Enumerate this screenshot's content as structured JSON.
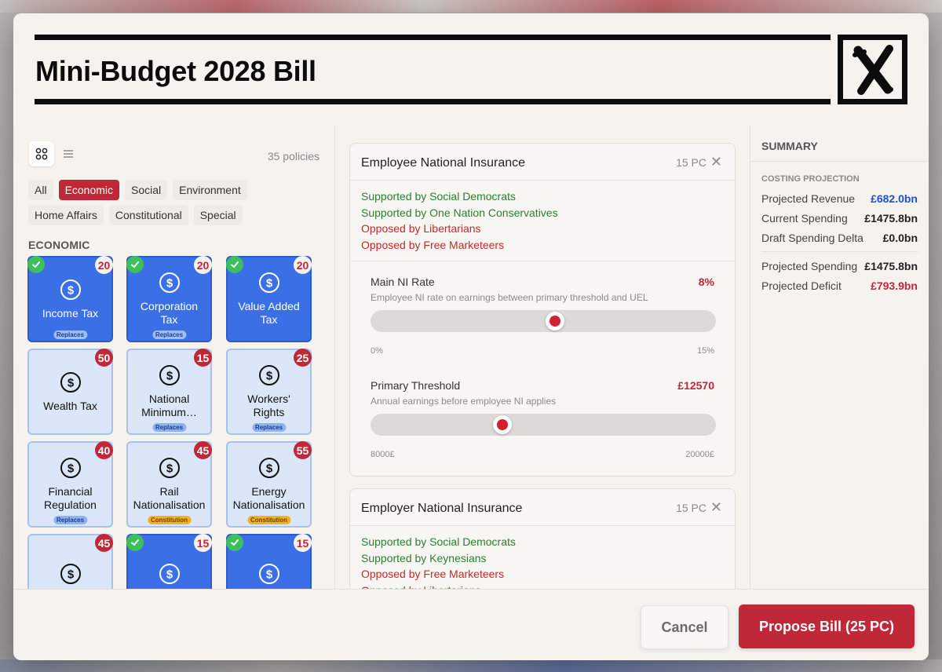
{
  "modal": {
    "title": "Mini-Budget 2028 Bill",
    "close_icon": "hand-drawn-x-icon"
  },
  "library": {
    "policy_count": "35 policies",
    "view_modes": [
      "grid-view-icon",
      "list-view-icon"
    ],
    "active_view": "grid",
    "filters": [
      "All",
      "Economic",
      "Social",
      "Environment",
      "Home Affairs",
      "Constitutional",
      "Special"
    ],
    "active_filter": "Economic",
    "section_label": "ECONOMIC",
    "cards": [
      {
        "label": "Income Tax",
        "cost": "20",
        "selected": true,
        "tag": "Replaces",
        "tag_type": "replaces"
      },
      {
        "label": "Corporation Tax",
        "cost": "20",
        "selected": true,
        "tag": "Replaces",
        "tag_type": "replaces"
      },
      {
        "label": "Value Added Tax",
        "cost": "20",
        "selected": true,
        "tag": "",
        "tag_type": ""
      },
      {
        "label": "Wealth Tax",
        "cost": "50",
        "selected": false,
        "tag": "",
        "tag_type": ""
      },
      {
        "label": "National Minimum…",
        "cost": "15",
        "selected": false,
        "tag": "Replaces",
        "tag_type": "replaces"
      },
      {
        "label": "Workers' Rights",
        "cost": "25",
        "selected": false,
        "tag": "Replaces",
        "tag_type": "replaces"
      },
      {
        "label": "Financial Regulation",
        "cost": "40",
        "selected": false,
        "tag": "Replaces",
        "tag_type": "replaces"
      },
      {
        "label": "Rail Nationalisation",
        "cost": "45",
        "selected": false,
        "tag": "Constitution",
        "tag_type": "constitution"
      },
      {
        "label": "Energy Nationalisation",
        "cost": "55",
        "selected": false,
        "tag": "Constitution",
        "tag_type": "constitution"
      },
      {
        "label": "",
        "cost": "45",
        "selected": false,
        "tag": "",
        "tag_type": ""
      },
      {
        "label": "",
        "cost": "15",
        "selected": true,
        "tag": "",
        "tag_type": ""
      },
      {
        "label": "",
        "cost": "15",
        "selected": true,
        "tag": "",
        "tag_type": ""
      }
    ],
    "card_icon": "dollar-circle-icon"
  },
  "policies": [
    {
      "title": "Employee National Insurance",
      "cost": "15 PC",
      "stances": [
        {
          "text": "Supported by Social Democrats",
          "type": "sup"
        },
        {
          "text": "Supported by One Nation Conservatives",
          "type": "sup"
        },
        {
          "text": "Opposed by Libertarians",
          "type": "opp"
        },
        {
          "text": "Opposed by Free Marketeers",
          "type": "opp"
        }
      ],
      "params": [
        {
          "name": "Main NI Rate",
          "value_label": "8%",
          "desc": "Employee NI rate on earnings between primary threshold and UEL",
          "min_label": "0%",
          "max_label": "15%",
          "min": 0,
          "max": 15,
          "value": 8
        },
        {
          "name": "Primary Threshold",
          "value_label": "£12570",
          "desc": "Annual earnings before employee NI applies",
          "min_label": "8000£",
          "max_label": "20000£",
          "min": 8000,
          "max": 20000,
          "value": 12570
        }
      ]
    },
    {
      "title": "Employer National Insurance",
      "cost": "15 PC",
      "stances": [
        {
          "text": "Supported by Social Democrats",
          "type": "sup"
        },
        {
          "text": "Supported by Keynesians",
          "type": "sup"
        },
        {
          "text": "Opposed by Free Marketeers",
          "type": "opp"
        },
        {
          "text": "Opposed by Libertarians",
          "type": "opp"
        }
      ],
      "params": []
    }
  ],
  "summary": {
    "heading": "SUMMARY",
    "subheading": "COSTING PROJECTION",
    "rows_a": [
      {
        "k": "Projected Revenue",
        "v": "£682.0bn",
        "tone": "blue"
      },
      {
        "k": "Current Spending",
        "v": "£1475.8bn",
        "tone": ""
      },
      {
        "k": "Draft Spending Delta",
        "v": "£0.0bn",
        "tone": ""
      }
    ],
    "rows_b": [
      {
        "k": "Projected Spending",
        "v": "£1475.8bn",
        "tone": ""
      },
      {
        "k": "Projected Deficit",
        "v": "£793.9bn",
        "tone": "red"
      }
    ]
  },
  "footer": {
    "cancel_label": "Cancel",
    "propose_label": "Propose Bill (25 PC)"
  },
  "colors": {
    "accent_red": "#c02738",
    "card_selected": "#3b6fe6",
    "card_unselected": "#dbe6f8",
    "support_green": "#2e7d32",
    "oppose_red": "#c62828"
  }
}
